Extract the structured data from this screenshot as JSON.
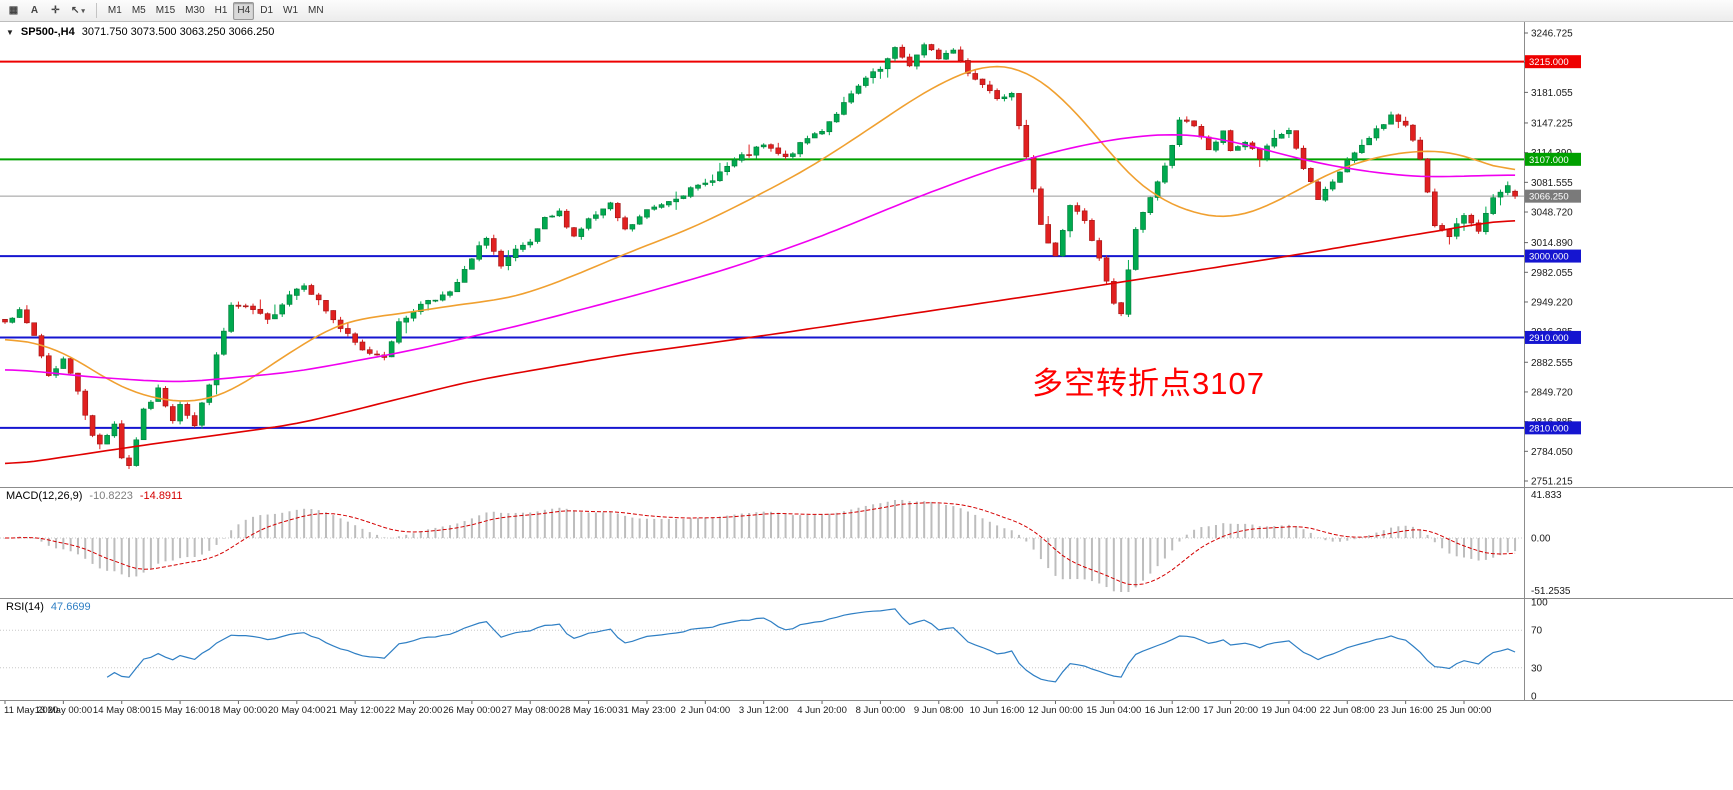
{
  "toolbar": {
    "tools": [
      {
        "name": "chart-grid",
        "glyph": "▦"
      },
      {
        "name": "text-label",
        "glyph": "A"
      },
      {
        "name": "crosshair",
        "glyph": "✛"
      },
      {
        "name": "cursor-tool",
        "glyph": "↖",
        "caret": "▾"
      }
    ],
    "timeframes": [
      "M1",
      "M5",
      "M15",
      "M30",
      "H1",
      "H4",
      "D1",
      "W1",
      "MN"
    ],
    "active_timeframe": "H4"
  },
  "chart": {
    "symbol_period": "SP500-,H4",
    "ohlc_text": "3071.750 3073.500 3063.250 3066.250"
  },
  "annotation": {
    "text": "多空转折点3107",
    "color": "#FF0000"
  },
  "price_axis": {
    "labels": [
      "3246.725",
      "3213.890",
      "3181.055",
      "3147.225",
      "3114.390",
      "3081.555",
      "3048.720",
      "3014.890",
      "2982.055",
      "2949.220",
      "2916.385",
      "2882.555",
      "2849.720",
      "2816.885",
      "2784.050",
      "2751.215"
    ],
    "badges": [
      {
        "value": "3215.000",
        "color": "#EE0000"
      },
      {
        "value": "3107.000",
        "color": "#00A000"
      },
      {
        "value": "3066.250",
        "color": "#7A7A7A"
      },
      {
        "value": "3000.000",
        "color": "#1515D0"
      },
      {
        "value": "2910.000",
        "color": "#1515D0"
      },
      {
        "value": "2810.000",
        "color": "#1515D0"
      }
    ]
  },
  "indicators": {
    "macd": {
      "label": "MACD(12,26,9)",
      "value_main": "-10.8223",
      "value_signal": "-14.8911",
      "axis": [
        "41.833",
        "0.00",
        "-51.2535"
      ],
      "params": {
        "fast": 12,
        "slow": 26,
        "signal": 9
      },
      "colors": {
        "histogram": "#BDBDBD",
        "signal": "#D40000"
      }
    },
    "rsi": {
      "label": "RSI(14)",
      "value": "47.6699",
      "axis": [
        "100",
        "70",
        "30",
        "0"
      ],
      "period": 14,
      "levels": [
        70,
        30
      ],
      "color": "#2F7FC4"
    }
  },
  "chart_data": {
    "type": "candlestick",
    "title": "SP500-,H4",
    "bars": 208,
    "price_range": {
      "top": 3246.725,
      "bottom": 2751.215
    },
    "last_bar": {
      "open": 3071.75,
      "high": 3073.5,
      "low": 3063.25,
      "close": 3066.25
    },
    "noise_seed": 7,
    "up_color": "#00A94F",
    "down_color": "#E02020",
    "close_waypoints": [
      [
        0,
        2930
      ],
      [
        2,
        2938
      ],
      [
        4,
        2912
      ],
      [
        6,
        2868
      ],
      [
        8,
        2886
      ],
      [
        10,
        2852
      ],
      [
        12,
        2800
      ],
      [
        13,
        2792
      ],
      [
        15,
        2815
      ],
      [
        16,
        2778
      ],
      [
        17,
        2768
      ],
      [
        19,
        2828
      ],
      [
        21,
        2852
      ],
      [
        23,
        2820
      ],
      [
        24,
        2838
      ],
      [
        26,
        2812
      ],
      [
        28,
        2860
      ],
      [
        31,
        2945
      ],
      [
        34,
        2940
      ],
      [
        36,
        2928
      ],
      [
        39,
        2958
      ],
      [
        41,
        2970
      ],
      [
        43,
        2950
      ],
      [
        46,
        2920
      ],
      [
        49,
        2895
      ],
      [
        52,
        2890
      ],
      [
        54,
        2925
      ],
      [
        56,
        2940
      ],
      [
        58,
        2952
      ],
      [
        61,
        2958
      ],
      [
        64,
        2996
      ],
      [
        66,
        3022
      ],
      [
        68,
        2988
      ],
      [
        70,
        3005
      ],
      [
        72,
        3015
      ],
      [
        74,
        3040
      ],
      [
        76,
        3048
      ],
      [
        78,
        3022
      ],
      [
        80,
        3040
      ],
      [
        83,
        3056
      ],
      [
        85,
        3028
      ],
      [
        88,
        3050
      ],
      [
        92,
        3066
      ],
      [
        96,
        3080
      ],
      [
        100,
        3105
      ],
      [
        104,
        3122
      ],
      [
        107,
        3108
      ],
      [
        110,
        3130
      ],
      [
        112,
        3140
      ],
      [
        115,
        3168
      ],
      [
        118,
        3196
      ],
      [
        120,
        3206
      ],
      [
        122,
        3228
      ],
      [
        124,
        3212
      ],
      [
        126,
        3232
      ],
      [
        128,
        3220
      ],
      [
        130,
        3228
      ],
      [
        132,
        3204
      ],
      [
        134,
        3190
      ],
      [
        136,
        3176
      ],
      [
        138,
        3182
      ],
      [
        140,
        3112
      ],
      [
        142,
        3032
      ],
      [
        144,
        3002
      ],
      [
        146,
        3056
      ],
      [
        148,
        3040
      ],
      [
        150,
        2996
      ],
      [
        152,
        2946
      ],
      [
        153,
        2936
      ],
      [
        155,
        3030
      ],
      [
        157,
        3066
      ],
      [
        159,
        3098
      ],
      [
        161,
        3152
      ],
      [
        163,
        3142
      ],
      [
        165,
        3118
      ],
      [
        167,
        3136
      ],
      [
        168,
        3118
      ],
      [
        170,
        3126
      ],
      [
        172,
        3108
      ],
      [
        174,
        3130
      ],
      [
        176,
        3140
      ],
      [
        178,
        3098
      ],
      [
        180,
        3062
      ],
      [
        182,
        3080
      ],
      [
        184,
        3106
      ],
      [
        186,
        3120
      ],
      [
        188,
        3140
      ],
      [
        190,
        3155
      ],
      [
        192,
        3144
      ],
      [
        194,
        3108
      ],
      [
        196,
        3036
      ],
      [
        198,
        3020
      ],
      [
        200,
        3046
      ],
      [
        202,
        3030
      ],
      [
        204,
        3062
      ],
      [
        206,
        3076
      ],
      [
        207,
        3066.25
      ]
    ],
    "moving_averages": [
      {
        "name": "fast",
        "color": "#F0A030",
        "waypoints": [
          [
            0,
            2912
          ],
          [
            8,
            2896
          ],
          [
            16,
            2852
          ],
          [
            24,
            2836
          ],
          [
            30,
            2844
          ],
          [
            38,
            2888
          ],
          [
            46,
            2928
          ],
          [
            54,
            2936
          ],
          [
            62,
            2946
          ],
          [
            70,
            2954
          ],
          [
            78,
            2978
          ],
          [
            86,
            3006
          ],
          [
            94,
            3030
          ],
          [
            102,
            3062
          ],
          [
            110,
            3096
          ],
          [
            118,
            3138
          ],
          [
            126,
            3182
          ],
          [
            132,
            3206
          ],
          [
            137,
            3216
          ],
          [
            143,
            3192
          ],
          [
            149,
            3140
          ],
          [
            155,
            3078
          ],
          [
            161,
            3052
          ],
          [
            166,
            3040
          ],
          [
            171,
            3046
          ],
          [
            177,
            3072
          ],
          [
            183,
            3098
          ],
          [
            189,
            3112
          ],
          [
            195,
            3118
          ],
          [
            200,
            3114
          ],
          [
            204,
            3098
          ],
          [
            207,
            3088
          ]
        ]
      },
      {
        "name": "medium",
        "color": "#F000F0",
        "waypoints": [
          [
            0,
            2876
          ],
          [
            12,
            2866
          ],
          [
            24,
            2860
          ],
          [
            40,
            2872
          ],
          [
            56,
            2896
          ],
          [
            72,
            2926
          ],
          [
            88,
            2960
          ],
          [
            100,
            2988
          ],
          [
            112,
            3022
          ],
          [
            124,
            3062
          ],
          [
            136,
            3098
          ],
          [
            146,
            3120
          ],
          [
            154,
            3132
          ],
          [
            162,
            3136
          ],
          [
            170,
            3124
          ],
          [
            178,
            3106
          ],
          [
            186,
            3094
          ],
          [
            194,
            3087
          ],
          [
            207,
            3090
          ]
        ]
      },
      {
        "name": "slow",
        "color": "#E00000",
        "waypoints": [
          [
            0,
            2768
          ],
          [
            20,
            2792
          ],
          [
            40,
            2814
          ],
          [
            64,
            2862
          ],
          [
            84,
            2890
          ],
          [
            104,
            2912
          ],
          [
            124,
            2936
          ],
          [
            144,
            2960
          ],
          [
            160,
            2980
          ],
          [
            176,
            3000
          ],
          [
            192,
            3022
          ],
          [
            207,
            3042
          ]
        ]
      }
    ],
    "horizontal_lines": [
      {
        "price": 3215.0,
        "color": "#EE0000",
        "width": 2
      },
      {
        "price": 3107.0,
        "color": "#00A000",
        "width": 2
      },
      {
        "price": 3066.25,
        "color": "#9A9A9A",
        "width": 1
      },
      {
        "price": 3000.0,
        "color": "#1515D0",
        "width": 2
      },
      {
        "price": 2910.0,
        "color": "#1515D0",
        "width": 2
      },
      {
        "price": 2810.0,
        "color": "#1515D0",
        "width": 2
      }
    ],
    "time_labels": [
      "11 May 2020",
      "13 May 00:00",
      "14 May 08:00",
      "15 May 16:00",
      "18 May 00:00",
      "20 May 04:00",
      "21 May 12:00",
      "22 May 20:00",
      "26 May 00:00",
      "27 May 08:00",
      "28 May 16:00",
      "31 May 23:00",
      "2 Jun 04:00",
      "3 Jun 12:00",
      "4 Jun 20:00",
      "8 Jun 00:00",
      "9 Jun 08:00",
      "10 Jun 16:00",
      "12 Jun 00:00",
      "15 Jun 04:00",
      "16 Jun 12:00",
      "17 Jun 20:00",
      "19 Jun 04:00",
      "22 Jun 08:00",
      "23 Jun 16:00",
      "25 Jun 00:00"
    ]
  }
}
